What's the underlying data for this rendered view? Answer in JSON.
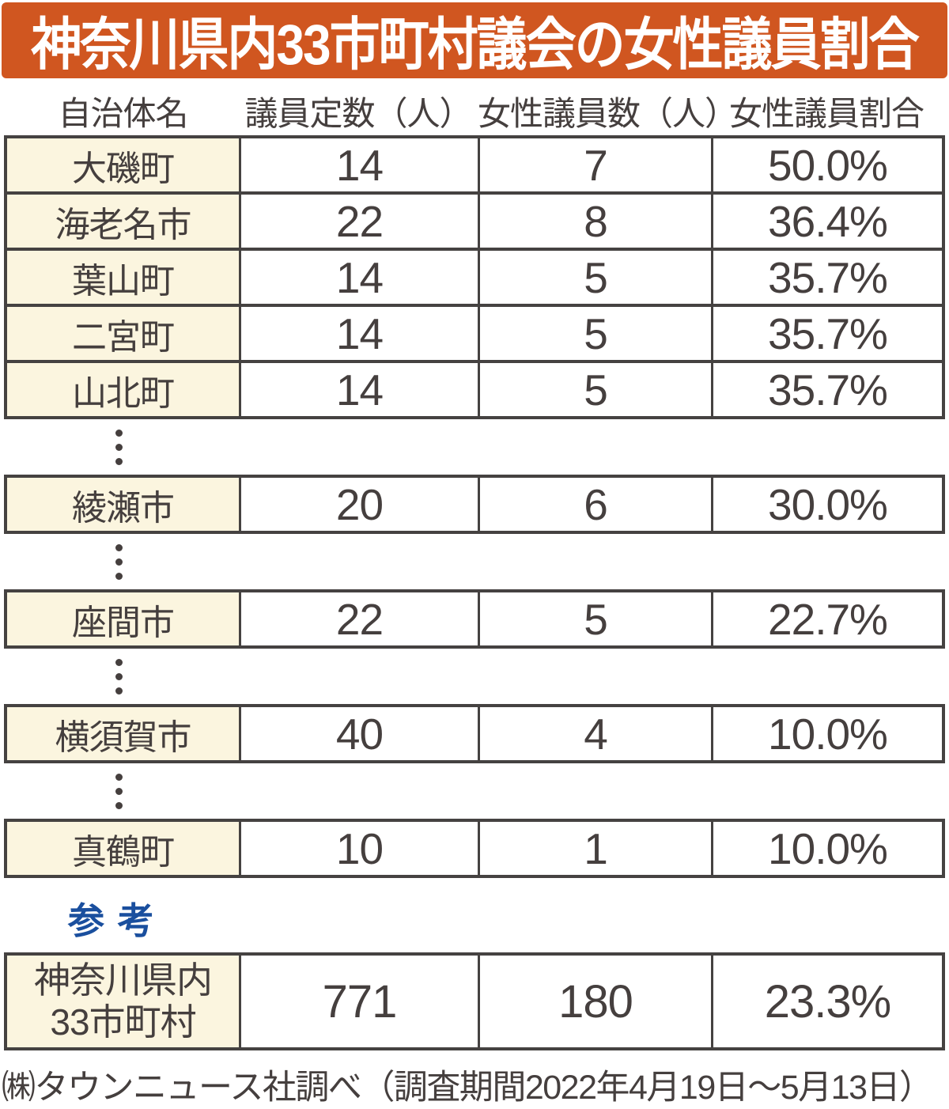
{
  "colors": {
    "banner_bg": "#d05620",
    "banner_text": "#ffffff",
    "name_col_bg": "#fbf5df",
    "border": "#454241",
    "text": "#453f3e",
    "blue": "#1a4f9e"
  },
  "header": {
    "title": "神奈川県内33市町村議会の女性議員割合"
  },
  "table": {
    "columns": [
      "自治体名",
      "議員定数（人）",
      "女性議員数（人）",
      "女性議員割合"
    ],
    "groups": [
      {
        "rows": [
          {
            "name": "大磯町",
            "seats": "14",
            "women": "7",
            "ratio": "50.0%"
          },
          {
            "name": "海老名市",
            "seats": "22",
            "women": "8",
            "ratio": "36.4%"
          },
          {
            "name": "葉山町",
            "seats": "14",
            "women": "5",
            "ratio": "35.7%"
          },
          {
            "name": "二宮町",
            "seats": "14",
            "women": "5",
            "ratio": "35.7%"
          },
          {
            "name": "山北町",
            "seats": "14",
            "women": "5",
            "ratio": "35.7%"
          }
        ]
      },
      {
        "rows": [
          {
            "name": "綾瀬市",
            "seats": "20",
            "women": "6",
            "ratio": "30.0%"
          }
        ]
      },
      {
        "rows": [
          {
            "name": "座間市",
            "seats": "22",
            "women": "5",
            "ratio": "22.7%"
          }
        ]
      },
      {
        "rows": [
          {
            "name": "横須賀市",
            "seats": "40",
            "women": "4",
            "ratio": "10.0%"
          }
        ]
      },
      {
        "rows": [
          {
            "name": "真鶴町",
            "seats": "10",
            "women": "1",
            "ratio": "10.0%"
          }
        ]
      }
    ],
    "summary": {
      "label_line1": "神奈川県内",
      "label_line2": "33市町村",
      "seats": "771",
      "women": "180",
      "ratio": "23.3%"
    }
  },
  "reference_label": "参 考",
  "footer": "㈱タウンニュース社調べ（調査期間2022年4月19日～5月13日）",
  "chart_data": {
    "type": "table",
    "title": "神奈川県内33市町村議会の女性議員割合",
    "columns": [
      "自治体名",
      "議員定数（人）",
      "女性議員数（人）",
      "女性議員割合"
    ],
    "rows": [
      [
        "大磯町",
        14,
        7,
        "50.0%"
      ],
      [
        "海老名市",
        22,
        8,
        "36.4%"
      ],
      [
        "葉山町",
        14,
        5,
        "35.7%"
      ],
      [
        "二宮町",
        14,
        5,
        "35.7%"
      ],
      [
        "山北町",
        14,
        5,
        "35.7%"
      ],
      [
        "綾瀬市",
        20,
        6,
        "30.0%"
      ],
      [
        "座間市",
        22,
        5,
        "22.7%"
      ],
      [
        "横須賀市",
        40,
        4,
        "10.0%"
      ],
      [
        "真鶴町",
        10,
        1,
        "10.0%"
      ],
      [
        "神奈川県内33市町村",
        771,
        180,
        "23.3%"
      ]
    ],
    "layout_hint": "groups separated by vertical ellipsis dots indicating omitted rows",
    "source": "㈱タウンニュース社調べ（調査期間2022年4月19日～5月13日）"
  }
}
